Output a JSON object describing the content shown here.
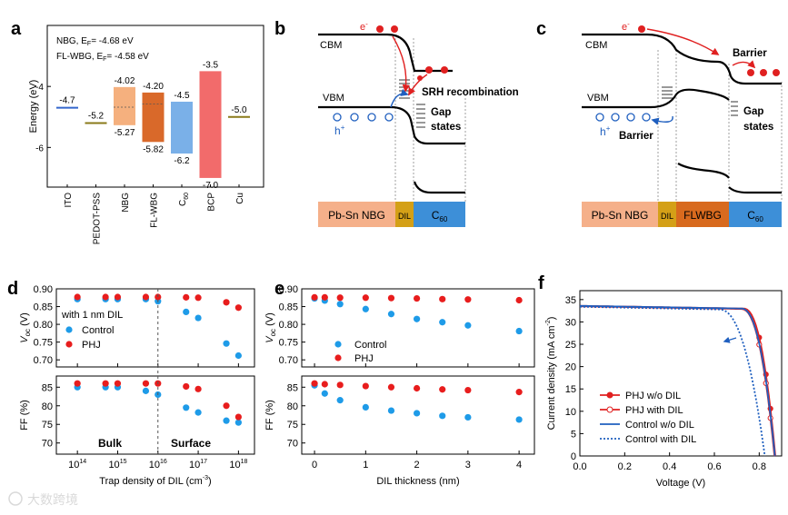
{
  "panel_letters": [
    "a",
    "b",
    "c",
    "d",
    "e",
    "f"
  ],
  "colors": {
    "control": "#1e9be8",
    "phj": "#e81d1d",
    "red_line": "#e02020",
    "blue_line": "#1f5fbf",
    "pbsn": "#f5b08a",
    "dil": "#d4a017",
    "c60": "#3d8fd8",
    "flwbg": "#d86a1e"
  },
  "panel_a": {
    "ylabel": "Energy (eV)",
    "ylim": [
      -7.3,
      -2.0
    ],
    "yticks": [
      -4,
      -6
    ],
    "tick_labels": [
      "-4",
      "-6"
    ],
    "legend_lines": [
      {
        "sym": "NBG, E",
        "sub": "F",
        "val": "= -4.68 eV"
      },
      {
        "sym": "FL-WBG, E",
        "sub": "F",
        "val": "= -4.58 eV"
      }
    ],
    "materials": [
      {
        "name": "ITO",
        "type": "line",
        "level": -4.7,
        "label": "-4.7",
        "color": "#3366cc"
      },
      {
        "name": "PEDOT-PSS",
        "type": "line",
        "level": -5.2,
        "label": "-5.2",
        "color": "#8a7a1a"
      },
      {
        "name": "NBG",
        "type": "bar",
        "top": -4.02,
        "bottom": -5.27,
        "fermi": -4.68,
        "top_label": "-4.02",
        "bottom_label": "-5.27",
        "color": "#f5b07e"
      },
      {
        "name": "FL-WBG",
        "type": "bar",
        "top": -4.2,
        "bottom": -5.82,
        "fermi": -4.58,
        "top_label": "-4.20",
        "bottom_label": "-5.82",
        "color": "#d9692a"
      },
      {
        "name": "C",
        "name_sub": "60",
        "type": "bar",
        "top": -4.5,
        "bottom": -6.2,
        "top_label": "-4.5",
        "bottom_label": "-6.2",
        "color": "#7ab0e8"
      },
      {
        "name": "BCP",
        "type": "bar",
        "top": -3.5,
        "bottom": -7.0,
        "top_label": "-3.5",
        "bottom_label": "-7.0",
        "color": "#f26b6b"
      },
      {
        "name": "Cu",
        "type": "line",
        "level": -5.0,
        "label": "-5.0",
        "color": "#8a7a1a"
      }
    ]
  },
  "panel_b": {
    "labels": {
      "cbm": "CBM",
      "vbm": "VBM",
      "electron": "e",
      "hole": "h",
      "srh": "SRH recombination",
      "gap1": "Gap",
      "gap2": "states"
    },
    "layers": [
      {
        "name": "Pb-Sn NBG",
        "color": "#f5b08a"
      },
      {
        "name": "DIL",
        "color": "#d4a017"
      },
      {
        "name": "C",
        "name_sub": "60",
        "color": "#3d8fd8"
      }
    ]
  },
  "panel_c": {
    "labels": {
      "cbm": "CBM",
      "vbm": "VBM",
      "electron": "e",
      "hole": "h",
      "barrier_top": "Barrier",
      "barrier_bottom": "Barrier",
      "gap1": "Gap",
      "gap2": "states"
    },
    "layers": [
      {
        "name": "Pb-Sn NBG",
        "color": "#f5b08a"
      },
      {
        "name": "DIL",
        "color": "#d4a017"
      },
      {
        "name": "FLWBG",
        "color": "#d86a1e"
      },
      {
        "name": "C",
        "name_sub": "60",
        "color": "#3d8fd8"
      }
    ]
  },
  "chart_data": [
    {
      "panel": "d",
      "type": "scatter",
      "xscale": "log",
      "xlabel": "Trap density of DIL (cm",
      "xlabel_sup": "-3",
      "xlabel_end": ")",
      "xlim": [
        30000000000000.0,
        2.5e+18
      ],
      "xtick_exponents": [
        14,
        15,
        16,
        17,
        18
      ],
      "x": [
        100000000000000.0,
        500000000000000.0,
        1000000000000000.0,
        5000000000000000.0,
        1e+16,
        5e+16,
        1e+17,
        5e+17,
        1e+18
      ],
      "divider_x": 1e+16,
      "annotation_left": "with 1 nm DIL",
      "region_labels": [
        "Bulk",
        "Surface"
      ],
      "top": {
        "ylabel": "V",
        "ylabel_sub": "oc",
        "ylabel_end": " (V)",
        "ylim": [
          0.68,
          0.9
        ],
        "yticks": [
          0.7,
          0.75,
          0.8,
          0.85,
          0.9
        ],
        "ytick_labels": [
          "0.70",
          "0.75",
          "0.80",
          "0.85",
          "0.90"
        ],
        "series": [
          {
            "name": "Control",
            "values": [
              0.871,
              0.871,
              0.871,
              0.871,
              0.865,
              0.835,
              0.818,
              0.746,
              0.712
            ]
          },
          {
            "name": "PHJ",
            "values": [
              0.877,
              0.877,
              0.877,
              0.877,
              0.877,
              0.876,
              0.875,
              0.862,
              0.847
            ]
          }
        ]
      },
      "bottom": {
        "ylabel": "FF (%)",
        "ylim": [
          67,
          88
        ],
        "yticks": [
          70,
          75,
          80,
          85
        ],
        "ytick_labels": [
          "70",
          "75",
          "80",
          "85"
        ],
        "series": [
          {
            "name": "Control",
            "values": [
              85,
              85,
              85,
              84,
              83,
              79.5,
              78.2,
              76,
              75.5
            ]
          },
          {
            "name": "PHJ",
            "values": [
              86,
              86,
              86,
              86,
              86,
              85.2,
              84.5,
              80,
              77
            ]
          }
        ]
      }
    },
    {
      "panel": "e",
      "type": "scatter",
      "xlabel": "DIL thickness (nm)",
      "xlim": [
        -0.25,
        4.3
      ],
      "xticks": [
        0,
        1,
        2,
        3,
        4
      ],
      "xtick_labels": [
        "0",
        "1",
        "2",
        "3",
        "4"
      ],
      "x": [
        0,
        0.2,
        0.5,
        1,
        1.5,
        2,
        2.5,
        3,
        4
      ],
      "top": {
        "ylabel": "V",
        "ylabel_sub": "oc",
        "ylabel_end": " (V)",
        "ylim": [
          0.68,
          0.9
        ],
        "yticks": [
          0.7,
          0.75,
          0.8,
          0.85,
          0.9
        ],
        "ytick_labels": [
          "0.70",
          "0.75",
          "0.80",
          "0.85",
          "0.90"
        ],
        "series": [
          {
            "name": "Control",
            "values": [
              0.873,
              0.867,
              0.857,
              0.843,
              0.829,
              0.815,
              0.806,
              0.797,
              0.781
            ]
          },
          {
            "name": "PHJ",
            "values": [
              0.876,
              0.876,
              0.875,
              0.875,
              0.874,
              0.873,
              0.871,
              0.87,
              0.868
            ]
          }
        ]
      },
      "bottom": {
        "ylabel": "FF (%)",
        "ylim": [
          67,
          88
        ],
        "yticks": [
          70,
          75,
          80,
          85
        ],
        "ytick_labels": [
          "70",
          "75",
          "80",
          "85"
        ],
        "series": [
          {
            "name": "Control",
            "values": [
              85.5,
              83.3,
              81.5,
              79.6,
              78.7,
              78,
              77.3,
              76.9,
              76.3
            ]
          },
          {
            "name": "PHJ",
            "values": [
              86,
              85.8,
              85.6,
              85.3,
              85,
              84.7,
              84.4,
              84.2,
              83.7
            ]
          }
        ]
      }
    },
    {
      "panel": "f",
      "type": "line",
      "xlabel": "Voltage (V)",
      "ylabel": "Current density (mA cm",
      "ylabel_sup": "-2",
      "ylabel_end": ")",
      "xlim": [
        0,
        0.9
      ],
      "ylim": [
        0,
        37
      ],
      "xticks": [
        0.0,
        0.2,
        0.4,
        0.6,
        0.8
      ],
      "xtick_labels": [
        "0.0",
        "0.2",
        "0.4",
        "0.6",
        "0.8"
      ],
      "yticks": [
        0,
        5,
        10,
        15,
        20,
        25,
        30,
        35
      ],
      "ytick_labels": [
        "0",
        "5",
        "10",
        "15",
        "20",
        "25",
        "30",
        "35"
      ],
      "series": [
        {
          "name": "PHJ w/o DIL",
          "style": "line-filled-circle",
          "color": "#e02020",
          "jsc": 33.6,
          "voc": 0.872,
          "knee": 0.73
        },
        {
          "name": "PHJ with DIL",
          "style": "line-open-circle",
          "color": "#e02020",
          "jsc": 33.5,
          "voc": 0.868,
          "knee": 0.72
        },
        {
          "name": "Control w/o DIL",
          "style": "solid",
          "color": "#1f5fbf",
          "jsc": 33.6,
          "voc": 0.87,
          "knee": 0.72
        },
        {
          "name": "Control with DIL",
          "style": "dotted",
          "color": "#1f5fbf",
          "jsc": 33.4,
          "voc": 0.825,
          "knee": 0.62
        }
      ]
    }
  ],
  "legends": {
    "d": [
      "Control",
      "PHJ"
    ],
    "e": [
      "Control",
      "PHJ"
    ]
  },
  "watermark": "大数跨境"
}
